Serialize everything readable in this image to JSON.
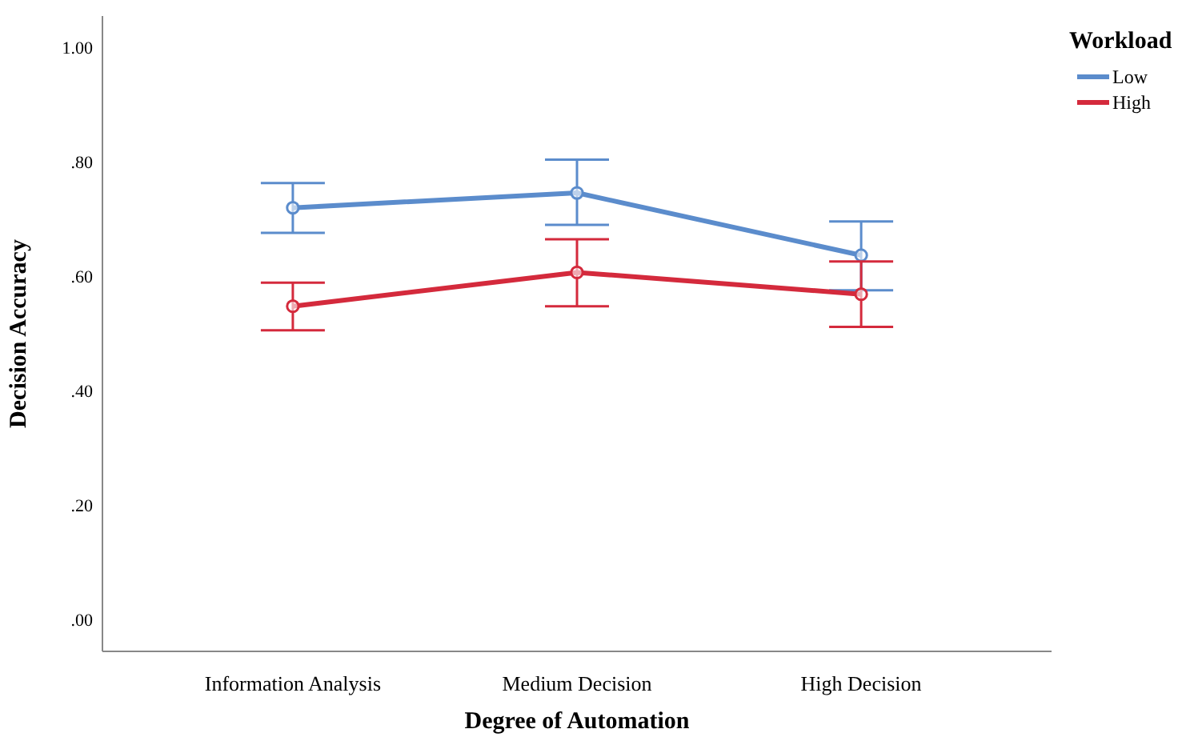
{
  "chart_data": {
    "type": "line",
    "xlabel": "Degree of Automation",
    "ylabel": "Decision Accuracy",
    "legend_title": "Workload",
    "categories": [
      "Information Analysis",
      "Medium Decision",
      "High Decision"
    ],
    "series": [
      {
        "name": "Low",
        "color": "#5b8ccc",
        "values": [
          0.72,
          0.746,
          0.637
        ],
        "errors": [
          [
            0.676,
            0.763
          ],
          [
            0.69,
            0.804
          ],
          [
            0.576,
            0.696
          ]
        ]
      },
      {
        "name": "High",
        "color": "#d42a3c",
        "values": [
          0.548,
          0.607,
          0.569
        ],
        "errors": [
          [
            0.506,
            0.589
          ],
          [
            0.548,
            0.665
          ],
          [
            0.512,
            0.626
          ]
        ]
      }
    ],
    "ylim": [
      -0.055,
      1.055
    ],
    "yticks": [
      {
        "value": 0,
        "label": ".00"
      },
      {
        "value": 0.2,
        "label": ".20"
      },
      {
        "value": 0.4,
        "label": ".40"
      },
      {
        "value": 0.6,
        "label": ".60"
      },
      {
        "value": 0.8,
        "label": ".80"
      },
      {
        "value": 1,
        "label": "1.00"
      }
    ],
    "marker": "circle",
    "legend": "top right",
    "grid": false
  }
}
